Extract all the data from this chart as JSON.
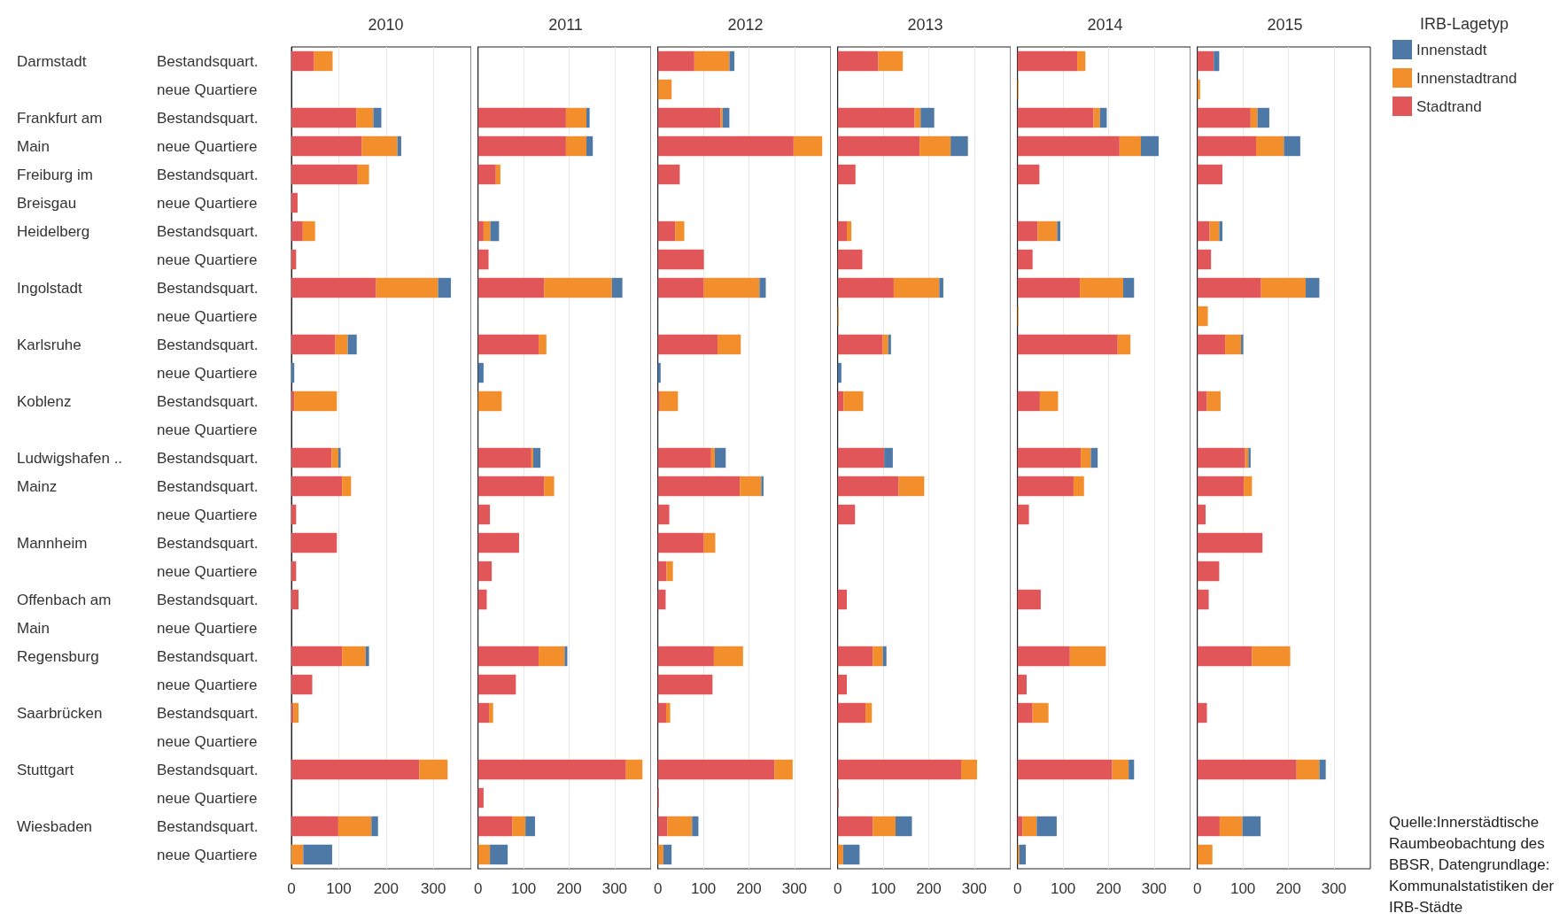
{
  "chart_data": [
    {
      "type": "bar",
      "orientation": "horizontal",
      "stacked": true,
      "title": "2010",
      "grid": "x",
      "xlim": [
        0,
        380
      ],
      "xticks": [
        0,
        100,
        200,
        300
      ],
      "categories": [
        "Bestandsquart.",
        "neue Quartiere",
        "Bestandsquart.",
        "neue Quartiere",
        "Bestandsquart.",
        "neue Quartiere",
        "Bestandsquart.",
        "neue Quartiere",
        "Bestandsquart.",
        "neue Quartiere",
        "Bestandsquart.",
        "neue Quartiere",
        "Bestandsquart.",
        "neue Quartiere",
        "Bestandsquart.",
        "Bestandsquart.",
        "neue Quartiere",
        "Bestandsquart.",
        "neue Quartiere",
        "Bestandsquart.",
        "neue Quartiere",
        "Bestandsquart.",
        "neue Quartiere",
        "Bestandsquart.",
        "neue Quartiere",
        "Bestandsquart.",
        "neue Quartiere",
        "Bestandsquart.",
        "neue Quartiere"
      ],
      "y2_categories": [
        "Darmstadt",
        null,
        "Frankfurt am",
        "Main",
        "Freiburg im",
        "Breisgau",
        "Heidelberg",
        null,
        "Ingolstadt",
        null,
        "Karlsruhe",
        null,
        "Koblenz",
        null,
        "Ludwigshafen ..",
        "Mainz",
        null,
        "Mannheim",
        null,
        "Offenbach am",
        "Main",
        "Regensburg",
        null,
        "Saarbrücken",
        null,
        "Stuttgart",
        null,
        "Wiesbaden",
        null
      ],
      "series": [
        {
          "color": "#e15759",
          "values": [
            48,
            null,
            137,
            149,
            140,
            13,
            24,
            10,
            179,
            null,
            93,
            null,
            6,
            null,
            85,
            107,
            10,
            96,
            10,
            15,
            null,
            107,
            44,
            4,
            null,
            270,
            null,
            99,
            null
          ]
        },
        {
          "color": "#f28e2b",
          "values": [
            39,
            null,
            36,
            75,
            24,
            null,
            26,
            null,
            131,
            null,
            26,
            null,
            90,
            null,
            14,
            19,
            null,
            null,
            null,
            null,
            null,
            50,
            null,
            11,
            null,
            60,
            null,
            70,
            25
          ]
        },
        {
          "color": "#4e79a7",
          "values": [
            null,
            null,
            17,
            8,
            null,
            null,
            null,
            null,
            27,
            null,
            19,
            6,
            null,
            null,
            5,
            null,
            null,
            null,
            null,
            null,
            null,
            7,
            null,
            null,
            null,
            null,
            null,
            14,
            61
          ]
        }
      ]
    },
    {
      "type": "bar",
      "orientation": "horizontal",
      "stacked": true,
      "title": "2011",
      "grid": "x",
      "tick_labels": "x",
      "xlim": [
        0,
        380
      ],
      "xticks": [
        0,
        100,
        200,
        300
      ],
      "categories": [
        "Bestandsquart.",
        "neue Quartiere",
        "Bestandsquart.",
        "neue Quartiere",
        "Bestandsquart.",
        "neue Quartiere",
        "Bestandsquart.",
        "neue Quartiere",
        "Bestandsquart.",
        "neue Quartiere",
        "Bestandsquart.",
        "neue Quartiere",
        "Bestandsquart.",
        "neue Quartiere",
        "Bestandsquart.",
        "Bestandsquart.",
        "neue Quartiere",
        "Bestandsquart.",
        "neue Quartiere",
        "Bestandsquart.",
        "neue Quartiere",
        "Bestandsquart.",
        "neue Quartiere",
        "Bestandsquart.",
        "neue Quartiere",
        "Bestandsquart.",
        "neue Quartiere",
        "Bestandsquart.",
        "neue Quartiere"
      ],
      "series": [
        {
          "color": "#e15759",
          "values": [
            null,
            null,
            193,
            193,
            39,
            null,
            12,
            23,
            145,
            null,
            133,
            null,
            null,
            null,
            117,
            145,
            26,
            90,
            30,
            19,
            null,
            133,
            83,
            24,
            null,
            325,
            12,
            75,
            null
          ]
        },
        {
          "color": "#f28e2b",
          "values": [
            null,
            null,
            45,
            45,
            10,
            null,
            15,
            null,
            149,
            null,
            17,
            null,
            52,
            null,
            4,
            22,
            null,
            null,
            null,
            null,
            null,
            57,
            null,
            9,
            null,
            36,
            null,
            29,
            26
          ]
        },
        {
          "color": "#4e79a7",
          "values": [
            null,
            null,
            7,
            14,
            null,
            null,
            19,
            null,
            23,
            null,
            null,
            12,
            null,
            null,
            16,
            null,
            null,
            null,
            null,
            null,
            null,
            6,
            null,
            null,
            null,
            null,
            null,
            21,
            39
          ]
        }
      ]
    },
    {
      "type": "bar",
      "orientation": "horizontal",
      "stacked": true,
      "title": "2012",
      "grid": "x",
      "tick_labels": "x",
      "xlim": [
        0,
        380
      ],
      "xticks": [
        0,
        100,
        200,
        300
      ],
      "categories": [
        "Bestandsquart.",
        "neue Quartiere",
        "Bestandsquart.",
        "neue Quartiere",
        "Bestandsquart.",
        "neue Quartiere",
        "Bestandsquart.",
        "neue Quartiere",
        "Bestandsquart.",
        "neue Quartiere",
        "Bestandsquart.",
        "neue Quartiere",
        "Bestandsquart.",
        "neue Quartiere",
        "Bestandsquart.",
        "Bestandsquart.",
        "neue Quartiere",
        "Bestandsquart.",
        "neue Quartiere",
        "Bestandsquart.",
        "neue Quartiere",
        "Bestandsquart.",
        "neue Quartiere",
        "Bestandsquart.",
        "neue Quartiere",
        "Bestandsquart.",
        "neue Quartiere",
        "Bestandsquart.",
        "neue Quartiere"
      ],
      "series": [
        {
          "color": "#e15759",
          "values": [
            80,
            null,
            137,
            298,
            48,
            null,
            38,
            101,
            101,
            null,
            131,
            null,
            4,
            null,
            117,
            180,
            25,
            101,
            19,
            17,
            null,
            123,
            120,
            18,
            null,
            256,
            2,
            21,
            null
          ]
        },
        {
          "color": "#f28e2b",
          "values": [
            77,
            30,
            5,
            63,
            null,
            null,
            20,
            null,
            122,
            null,
            51,
            null,
            40,
            null,
            8,
            47,
            null,
            25,
            14,
            null,
            null,
            64,
            null,
            9,
            null,
            40,
            null,
            54,
            12
          ]
        },
        {
          "color": "#4e79a7",
          "values": [
            11,
            null,
            15,
            null,
            null,
            null,
            null,
            null,
            14,
            null,
            null,
            6,
            null,
            null,
            24,
            5,
            null,
            null,
            null,
            null,
            null,
            null,
            null,
            null,
            null,
            null,
            null,
            14,
            18
          ]
        }
      ]
    },
    {
      "type": "bar",
      "orientation": "horizontal",
      "stacked": true,
      "title": "2013",
      "grid": "x",
      "tick_labels": "x",
      "xlim": [
        0,
        380
      ],
      "xticks": [
        0,
        100,
        200,
        300
      ],
      "categories": [
        "Bestandsquart.",
        "neue Quartiere",
        "Bestandsquart.",
        "neue Quartiere",
        "Bestandsquart.",
        "neue Quartiere",
        "Bestandsquart.",
        "neue Quartiere",
        "Bestandsquart.",
        "neue Quartiere",
        "Bestandsquart.",
        "neue Quartiere",
        "Bestandsquart.",
        "neue Quartiere",
        "Bestandsquart.",
        "Bestandsquart.",
        "neue Quartiere",
        "Bestandsquart.",
        "neue Quartiere",
        "Bestandsquart.",
        "neue Quartiere",
        "Bestandsquart.",
        "neue Quartiere",
        "Bestandsquart.",
        "neue Quartiere",
        "Bestandsquart.",
        "neue Quartiere",
        "Bestandsquart.",
        "neue Quartiere"
      ],
      "series": [
        {
          "color": "#e15759",
          "values": [
            89,
            null,
            169,
            180,
            39,
            null,
            20,
            54,
            123,
            null,
            99,
            null,
            13,
            null,
            102,
            134,
            38,
            null,
            null,
            20,
            null,
            77,
            20,
            61,
            null,
            271,
            2,
            77,
            null
          ]
        },
        {
          "color": "#f28e2b",
          "values": [
            54,
            null,
            13,
            68,
            null,
            null,
            10,
            null,
            100,
            2,
            12,
            null,
            43,
            null,
            null,
            56,
            null,
            null,
            null,
            null,
            null,
            22,
            null,
            14,
            null,
            35,
            null,
            50,
            12
          ]
        },
        {
          "color": "#4e79a7",
          "values": [
            null,
            null,
            30,
            38,
            null,
            null,
            null,
            null,
            9,
            null,
            6,
            8,
            null,
            null,
            19,
            null,
            null,
            null,
            null,
            null,
            null,
            8,
            null,
            null,
            null,
            null,
            null,
            36,
            36
          ]
        }
      ]
    },
    {
      "type": "bar",
      "orientation": "horizontal",
      "stacked": true,
      "title": "2014",
      "grid": "x",
      "tick_labels": "x",
      "xlim": [
        0,
        380
      ],
      "xticks": [
        0,
        100,
        200,
        300
      ],
      "categories": [
        "Bestandsquart.",
        "neue Quartiere",
        "Bestandsquart.",
        "neue Quartiere",
        "Bestandsquart.",
        "neue Quartiere",
        "Bestandsquart.",
        "neue Quartiere",
        "Bestandsquart.",
        "neue Quartiere",
        "Bestandsquart.",
        "neue Quartiere",
        "Bestandsquart.",
        "neue Quartiere",
        "Bestandsquart.",
        "Bestandsquart.",
        "neue Quartiere",
        "Bestandsquart.",
        "neue Quartiere",
        "Bestandsquart.",
        "neue Quartiere",
        "Bestandsquart.",
        "neue Quartiere",
        "Bestandsquart.",
        "neue Quartiere",
        "Bestandsquart.",
        "neue Quartiere",
        "Bestandsquart.",
        "neue Quartiere"
      ],
      "series": [
        {
          "color": "#e15759",
          "values": [
            131,
            null,
            167,
            224,
            48,
            null,
            44,
            33,
            137,
            null,
            220,
            null,
            49,
            null,
            139,
            123,
            25,
            null,
            null,
            51,
            null,
            115,
            20,
            33,
            null,
            208,
            null,
            11,
            null
          ]
        },
        {
          "color": "#f28e2b",
          "values": [
            18,
            2,
            14,
            47,
            null,
            null,
            43,
            null,
            95,
            2,
            28,
            null,
            40,
            null,
            22,
            23,
            null,
            null,
            null,
            null,
            null,
            79,
            null,
            35,
            null,
            36,
            null,
            31,
            4
          ]
        },
        {
          "color": "#4e79a7",
          "values": [
            null,
            null,
            15,
            39,
            null,
            null,
            7,
            null,
            24,
            null,
            null,
            null,
            null,
            null,
            15,
            null,
            null,
            null,
            null,
            null,
            null,
            null,
            null,
            null,
            null,
            12,
            null,
            44,
            14
          ]
        }
      ]
    },
    {
      "type": "bar",
      "orientation": "horizontal",
      "stacked": true,
      "title": "2015",
      "grid": "x",
      "tick_labels": "x",
      "xlim": [
        0,
        380
      ],
      "xticks": [
        0,
        100,
        200,
        300
      ],
      "legend": "right",
      "legend_title": "IRB-Lagetyp",
      "annotations": [
        "Quelle:Innerstädtische Raumbeobachtung des BBSR, Datengrundlage: Kommunalstatistiken der IRB-Städte"
      ],
      "categories": [
        "Bestandsquart.",
        "neue Quartiere",
        "Bestandsquart.",
        "neue Quartiere",
        "Bestandsquart.",
        "neue Quartiere",
        "Bestandsquart.",
        "neue Quartiere",
        "Bestandsquart.",
        "neue Quartiere",
        "Bestandsquart.",
        "neue Quartiere",
        "Bestandsquart.",
        "neue Quartiere",
        "Bestandsquart.",
        "Bestandsquart.",
        "neue Quartiere",
        "Bestandsquart.",
        "neue Quartiere",
        "Bestandsquart.",
        "neue Quartiere",
        "Bestandsquart.",
        "neue Quartiere",
        "Bestandsquart.",
        "neue Quartiere",
        "Bestandsquart.",
        "neue Quartiere",
        "Bestandsquart.",
        "neue Quartiere"
      ],
      "series": [
        {
          "name": "Stadtrand",
          "color": "#e15759",
          "values": [
            36,
            null,
            117,
            129,
            55,
            null,
            27,
            30,
            140,
            null,
            61,
            null,
            21,
            null,
            105,
            102,
            18,
            143,
            48,
            25,
            null,
            120,
            null,
            21,
            null,
            218,
            null,
            49,
            null
          ]
        },
        {
          "name": "Innenstadtrand",
          "color": "#f28e2b",
          "values": [
            null,
            6,
            15,
            61,
            null,
            null,
            21,
            null,
            98,
            23,
            35,
            null,
            30,
            null,
            7,
            18,
            null,
            null,
            null,
            null,
            null,
            84,
            null,
            null,
            null,
            50,
            null,
            50,
            33
          ]
        },
        {
          "name": "Innenstadt",
          "color": "#4e79a7",
          "values": [
            12,
            null,
            26,
            36,
            null,
            null,
            7,
            null,
            30,
            null,
            5,
            null,
            null,
            null,
            5,
            null,
            null,
            null,
            null,
            null,
            null,
            null,
            null,
            null,
            null,
            14,
            null,
            40,
            null
          ]
        }
      ]
    }
  ]
}
